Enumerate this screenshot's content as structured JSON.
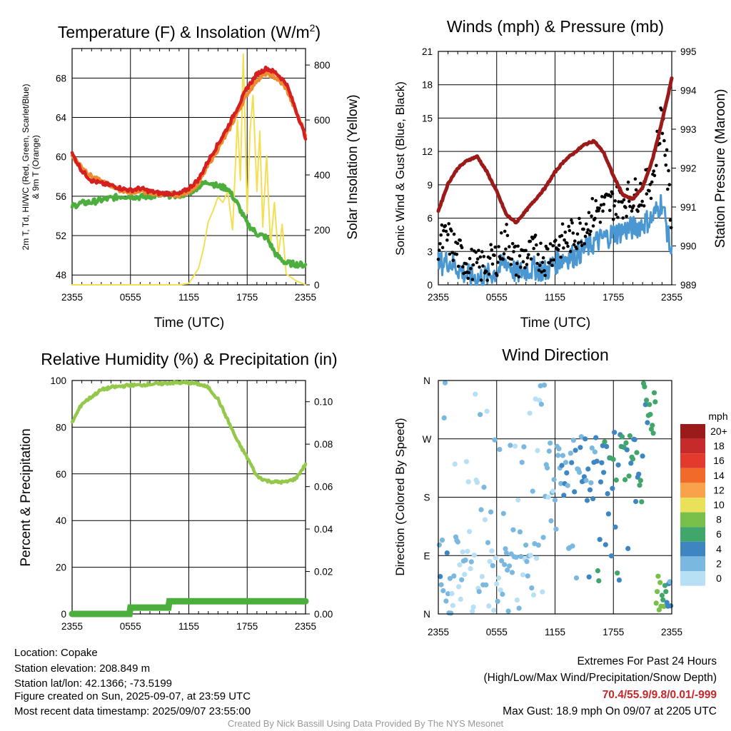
{
  "chart_data": [
    {
      "type": "line",
      "title": "Temperature (F) & Insolation (W/m²)",
      "xlabel": "Time (UTC)",
      "ylabel_left": "2m T, Td, HI/WC (Red, Green, Scarlet/Blue) & 9m T (Orange)",
      "ylabel_right": "Solar Insolation (Yellow)",
      "x_ticks": [
        "2355",
        "0555",
        "1155",
        "1755",
        "2355"
      ],
      "ylim": [
        47,
        71
      ],
      "y_ticks": [
        48,
        52,
        56,
        60,
        64,
        68
      ],
      "ylim_right": [
        0,
        860
      ],
      "y_ticks_right": [
        0,
        200,
        400,
        600,
        800
      ],
      "series": [
        {
          "name": "2m T",
          "color": "#d42020",
          "x": [
            0,
            1,
            2,
            3,
            4,
            5,
            6,
            7,
            8,
            9,
            10,
            11,
            12,
            13,
            14,
            15,
            16,
            17,
            18,
            19,
            20,
            21,
            22,
            23,
            24
          ],
          "values": [
            60.3,
            58.6,
            57.6,
            57.3,
            57.1,
            56.8,
            56.6,
            56.8,
            56.5,
            56.3,
            56.3,
            56.2,
            56.8,
            57.7,
            59.6,
            61.3,
            63.0,
            65.0,
            67.0,
            68.4,
            69.0,
            68.5,
            67.5,
            64.8,
            62.0
          ]
        },
        {
          "name": "9m T",
          "color": "#f08a30",
          "x": [
            0,
            1,
            2,
            3,
            4,
            5,
            6,
            7,
            8,
            9,
            10,
            11,
            12,
            13,
            14,
            15,
            16,
            17,
            18,
            19,
            20,
            21,
            22,
            23,
            24
          ],
          "values": [
            60.1,
            59.0,
            58.0,
            57.5,
            57.1,
            56.6,
            56.4,
            56.6,
            56.3,
            56.2,
            56.2,
            56.1,
            56.5,
            57.3,
            59.2,
            60.8,
            62.5,
            64.5,
            66.4,
            67.8,
            68.5,
            68.0,
            67.0,
            64.6,
            62.3
          ]
        },
        {
          "name": "Td",
          "color": "#4cae3c",
          "x": [
            0,
            1,
            2,
            3,
            4,
            5,
            6,
            7,
            8,
            9,
            10,
            11,
            12,
            13,
            14,
            15,
            16,
            17,
            18,
            19,
            20,
            21,
            22,
            23,
            24
          ],
          "values": [
            55.0,
            55.3,
            55.4,
            55.6,
            55.8,
            56.0,
            56.0,
            55.9,
            56.0,
            56.1,
            56.1,
            56.1,
            56.3,
            57.0,
            57.5,
            57.0,
            56.8,
            55.2,
            53.2,
            52.2,
            51.8,
            50.0,
            49.2,
            49.1,
            49.0
          ]
        },
        {
          "name": "Solar Insolation",
          "color": "#f3df53",
          "axis": "right",
          "x": [
            0,
            3,
            6,
            9,
            11,
            12,
            13,
            13.5,
            14,
            14.5,
            15,
            15.5,
            16,
            16.5,
            17,
            17.3,
            17.6,
            18,
            18.3,
            18.6,
            19,
            19.3,
            19.6,
            20,
            20.4,
            20.8,
            21.2,
            21.6,
            22,
            23,
            24
          ],
          "values": [
            0,
            0,
            0,
            0,
            0,
            5,
            60,
            130,
            230,
            270,
            320,
            300,
            340,
            200,
            600,
            380,
            840,
            260,
            560,
            690,
            340,
            560,
            210,
            470,
            140,
            300,
            110,
            220,
            40,
            15,
            0
          ]
        }
      ]
    },
    {
      "type": "line",
      "title": "Winds (mph) & Pressure (mb)",
      "xlabel": "Time (UTC)",
      "ylabel_left": "Sonic Wind & Gust (Blue, Black)",
      "ylabel_right": "Station Pressure (Maroon)",
      "x_ticks": [
        "2355",
        "0555",
        "1155",
        "1755",
        "2355"
      ],
      "ylim": [
        0,
        21
      ],
      "y_ticks": [
        0,
        3,
        6,
        9,
        12,
        15,
        18,
        21
      ],
      "ylim_right": [
        989,
        995
      ],
      "y_ticks_right": [
        989,
        990,
        991,
        992,
        993,
        994,
        995
      ],
      "series": [
        {
          "name": "Station Pressure",
          "color": "#9b1b1b",
          "axis": "right",
          "x": [
            0,
            1,
            2,
            3,
            4,
            5,
            6,
            7,
            8,
            9,
            10,
            11,
            12,
            13,
            14,
            15,
            16,
            17,
            18,
            19,
            20,
            21,
            22,
            23,
            24
          ],
          "values": [
            990.9,
            991.6,
            992.0,
            992.2,
            992.3,
            991.9,
            991.4,
            990.8,
            990.6,
            990.9,
            991.2,
            991.5,
            991.9,
            992.2,
            992.4,
            992.6,
            992.7,
            992.4,
            991.8,
            991.3,
            991.2,
            991.5,
            992.2,
            993.2,
            994.3
          ]
        },
        {
          "name": "Sonic Wind",
          "color": "#4a97d2",
          "x": [
            0,
            1,
            2,
            3,
            4,
            5,
            6,
            7,
            8,
            9,
            10,
            11,
            12,
            13,
            14,
            15,
            16,
            17,
            18,
            19,
            20,
            21,
            22,
            23,
            24
          ],
          "values": [
            1.8,
            2.2,
            1.5,
            0.8,
            0.6,
            0.8,
            1.2,
            2.2,
            1.0,
            1.3,
            1.5,
            1.2,
            2.0,
            2.5,
            2.6,
            3.2,
            3.8,
            4.2,
            4.6,
            4.9,
            5.1,
            5.5,
            6.0,
            7.5,
            2.6
          ]
        },
        {
          "name": "Gust",
          "color": "#000000",
          "x": [
            0,
            1,
            2,
            3,
            4,
            5,
            6,
            7,
            8,
            9,
            10,
            11,
            12,
            13,
            14,
            15,
            16,
            17,
            18,
            19,
            20,
            21,
            22,
            23,
            24
          ],
          "values": [
            3.8,
            4.2,
            2.8,
            2.0,
            1.5,
            1.8,
            2.4,
            4.2,
            2.0,
            2.6,
            3.0,
            2.4,
            3.6,
            4.0,
            4.5,
            5.2,
            6.5,
            7.0,
            7.4,
            7.6,
            8.0,
            8.4,
            9.5,
            15.5,
            5.5
          ]
        }
      ]
    },
    {
      "type": "line",
      "title": "Relative Humidity (%) & Precipitation (in)",
      "ylabel_left": "Percent & Precipitation",
      "x_ticks": [
        "2355",
        "0555",
        "1155",
        "1755",
        "2355"
      ],
      "ylim": [
        0,
        100
      ],
      "y_ticks": [
        0,
        20,
        40,
        60,
        80,
        100
      ],
      "ylim_right": [
        0,
        0.11
      ],
      "y_ticks_right": [
        "0.00",
        "0.02",
        "0.04",
        "0.06",
        "0.08",
        "0.10"
      ],
      "series": [
        {
          "name": "Relative Humidity",
          "color": "#93c84a",
          "x": [
            0,
            1,
            2,
            3,
            4,
            5,
            6,
            7,
            8,
            9,
            10,
            11,
            12,
            13,
            14,
            15,
            16,
            17,
            18,
            19,
            20,
            21,
            22,
            23,
            24
          ],
          "values": [
            82,
            90,
            93,
            96,
            97,
            97.5,
            98,
            98,
            98.5,
            98.5,
            99,
            99,
            99,
            98.5,
            97,
            92,
            83,
            74,
            67,
            59,
            57,
            56.5,
            56.5,
            58,
            64
          ]
        },
        {
          "name": "Precipitation",
          "color": "#4cae3c",
          "axis": "right",
          "x": [
            0,
            5.9,
            6.0,
            9.9,
            10.0,
            24
          ],
          "values": [
            0,
            0,
            0.003,
            0.003,
            0.006,
            0.006
          ]
        }
      ]
    },
    {
      "type": "scatter",
      "title": "Wind Direction",
      "ylabel": "Direction (Colored By Speed)",
      "x_ticks": [
        "2355",
        "0555",
        "1155",
        "1755",
        "2355"
      ],
      "y_ticks": [
        "N",
        "E",
        "S",
        "W",
        "N"
      ],
      "legend_title": "mph",
      "legend_labels": [
        "20+",
        "18",
        "16",
        "14",
        "12",
        "10",
        "8",
        "6",
        "4",
        "2",
        "0"
      ],
      "colors": [
        "#9b1b1b",
        "#c62a2a",
        "#e23a2c",
        "#f26a2a",
        "#f9a24a",
        "#e8e159",
        "#78c04a",
        "#41a66a",
        "#3d86c2",
        "#7ab8e0",
        "#b7e0f4"
      ]
    }
  ],
  "footer": {
    "location": "Location: Copake",
    "elevation": "Station elevation: 208.849 m",
    "latlon": "Station lat/lon: 42.1366; -73.5199",
    "created": "Figure created on Sun, 2025-09-07, at 23:59 UTC",
    "recent": "Most recent data timestamp: 2025/09/07 23:55:00",
    "extremes_title": "Extremes For Past 24 Hours",
    "extremes_sub": "(High/Low/Max Wind/Precipitation/Snow Depth)",
    "extremes_values": "70.4/55.9/9.8/0.01/-999",
    "max_gust": "Max Gust: 18.9 mph On 09/07 at 2205 UTC",
    "credit": "Created By Nick Bassill Using Data Provided By The NYS Mesonet"
  }
}
